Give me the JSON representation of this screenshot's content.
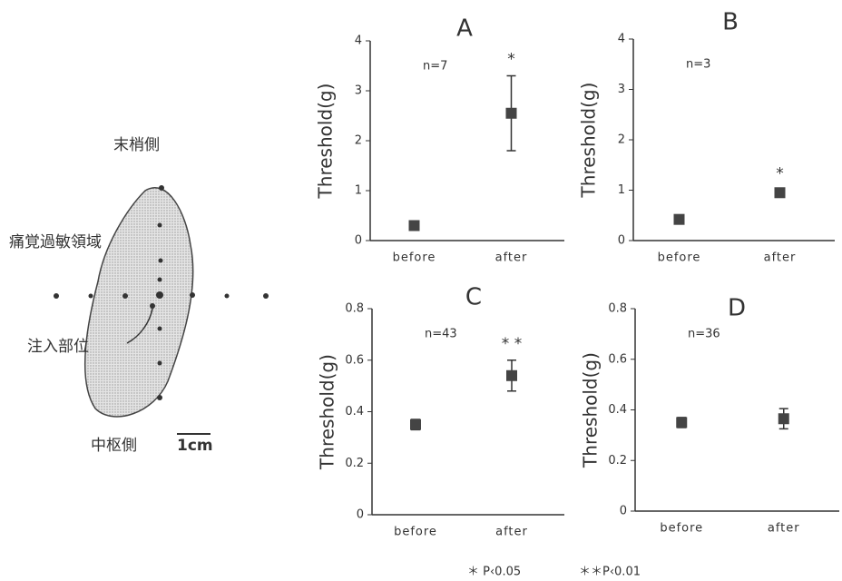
{
  "chart_data": [
    {
      "type": "errorbar",
      "title": "A",
      "y_label": "Threshold(g)",
      "categories": [
        "before",
        "after"
      ],
      "values": [
        0.3,
        2.55
      ],
      "errors": [
        0,
        0.75
      ],
      "stars": [
        null,
        "*"
      ],
      "n_label": "n=7",
      "ylim": [
        0,
        4
      ],
      "yticks": [
        0,
        1,
        2,
        3,
        4
      ],
      "color": "#444"
    },
    {
      "type": "errorbar",
      "title": "B",
      "y_label": "Threshold(g)",
      "categories": [
        "before",
        "after"
      ],
      "values": [
        0.42,
        0.95
      ],
      "errors": [
        0.08,
        0.05
      ],
      "stars": [
        null,
        "*"
      ],
      "n_label": "n=3",
      "ylim": [
        0,
        4
      ],
      "yticks": [
        0,
        1,
        2,
        3,
        4
      ],
      "color": "#444"
    },
    {
      "type": "errorbar",
      "title": "C",
      "y_label": "Threshold(g)",
      "categories": [
        "before",
        "after"
      ],
      "values": [
        0.35,
        0.54
      ],
      "errors": [
        0.02,
        0.06
      ],
      "stars": [
        null,
        "* *"
      ],
      "n_label": "n=43",
      "ylim": [
        0,
        0.8
      ],
      "yticks": [
        0,
        0.2,
        0.4,
        0.6,
        0.8
      ],
      "color": "#444"
    },
    {
      "type": "errorbar",
      "title": "D",
      "y_label": "Threshold(g)",
      "categories": [
        "before",
        "after"
      ],
      "values": [
        0.35,
        0.365
      ],
      "errors": [
        0.02,
        0.04
      ],
      "stars": [
        null,
        null
      ],
      "n_label": "n=36",
      "ylim": [
        0,
        0.8
      ],
      "yticks": [
        0,
        0.2,
        0.4,
        0.6,
        0.8
      ],
      "color": "#444"
    }
  ],
  "diagram": {
    "distal": "末梢側",
    "area": "痛覚過敏領域",
    "injection": "注入部位",
    "central": "中枢側",
    "scale": "1cm"
  },
  "footnotes": [
    "＊ P‹0.05",
    "＊＊P‹0.01"
  ]
}
